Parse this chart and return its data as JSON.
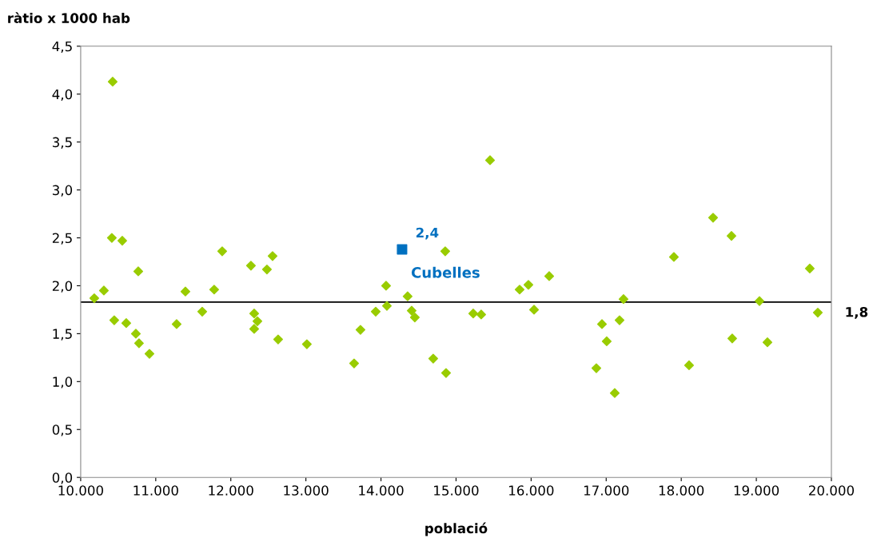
{
  "chart_data": {
    "type": "scatter",
    "xlabel": "població",
    "ylabel": "ràtio x 1000 hab",
    "xlim": [
      10000,
      20000
    ],
    "ylim": [
      0,
      4.5
    ],
    "xticks": [
      {
        "value": 10000,
        "label": "10.000"
      },
      {
        "value": 11000,
        "label": "11.000"
      },
      {
        "value": 12000,
        "label": "12.000"
      },
      {
        "value": 13000,
        "label": "13.000"
      },
      {
        "value": 14000,
        "label": "14.000"
      },
      {
        "value": 15000,
        "label": "15.000"
      },
      {
        "value": 16000,
        "label": "16.000"
      },
      {
        "value": 17000,
        "label": "17.000"
      },
      {
        "value": 18000,
        "label": "18.000"
      },
      {
        "value": 19000,
        "label": "19.000"
      },
      {
        "value": 20000,
        "label": "20.000"
      }
    ],
    "yticks": [
      {
        "value": 0,
        "label": "0,0"
      },
      {
        "value": 0.5,
        "label": "0,5"
      },
      {
        "value": 1,
        "label": "1,0"
      },
      {
        "value": 1.5,
        "label": "1,5"
      },
      {
        "value": 2,
        "label": "2,0"
      },
      {
        "value": 2.5,
        "label": "2,5"
      },
      {
        "value": 3,
        "label": "3,0"
      },
      {
        "value": 3.5,
        "label": "3,5"
      },
      {
        "value": 4,
        "label": "4,0"
      },
      {
        "value": 4.5,
        "label": "4,5"
      }
    ],
    "grid": false,
    "legend": false,
    "series": [
      {
        "color": "#99cc00",
        "marker": "diamond",
        "x": [
          10181,
          10309,
          10426,
          10415,
          10447,
          10554,
          10607,
          10735,
          10767,
          10777,
          10916,
          11278,
          11395,
          11619,
          11778,
          11885,
          12268,
          12311,
          12311,
          12354,
          12481,
          12556,
          12630,
          13013,
          13642,
          13727,
          13930,
          14068,
          14079,
          14355,
          14409,
          14451,
          14696,
          14856,
          14867,
          15229,
          15335,
          15453,
          15847,
          15964,
          16039,
          16241,
          16869,
          16944,
          17007,
          17114,
          17178,
          17231,
          17902,
          18104,
          18424,
          18669,
          18679,
          19042,
          19148,
          19712,
          19819
        ],
        "values": [
          1.87,
          1.95,
          4.13,
          2.5,
          1.64,
          2.47,
          1.61,
          1.5,
          2.15,
          1.4,
          1.29,
          1.6,
          1.94,
          1.73,
          1.96,
          2.36,
          2.21,
          1.71,
          1.55,
          1.63,
          2.17,
          2.31,
          1.44,
          1.39,
          1.19,
          1.54,
          1.73,
          2.0,
          1.79,
          1.89,
          1.74,
          1.67,
          1.24,
          2.36,
          1.09,
          1.71,
          1.7,
          3.31,
          1.96,
          2.01,
          1.75,
          2.1,
          1.14,
          1.6,
          1.42,
          0.88,
          1.64,
          1.86,
          2.3,
          1.17,
          2.71,
          2.52,
          1.45,
          1.84,
          1.41,
          2.18,
          1.72
        ]
      },
      {
        "name": "Cubelles",
        "color": "#0070c0",
        "marker": "square",
        "x": [
          14281
        ],
        "values": [
          2.38
        ],
        "value_labels": [
          "2,4"
        ]
      }
    ],
    "ref_lines": [
      {
        "axis": "y",
        "value": 1.83,
        "label": "1,8",
        "color": "#000000"
      }
    ]
  }
}
